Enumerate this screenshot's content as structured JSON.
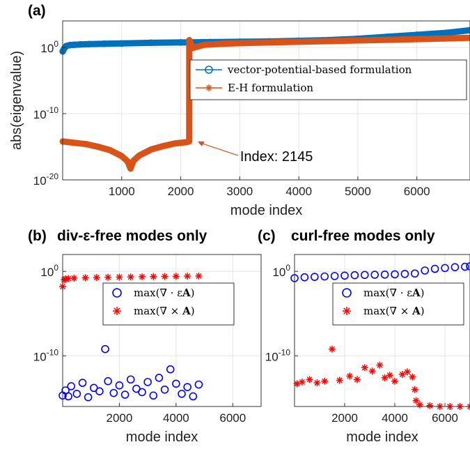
{
  "chart_data": [
    {
      "id": "a",
      "panel_label": "(a)",
      "type": "scatter",
      "xlabel": "mode index",
      "ylabel": "abs(eigenvalue)",
      "xlim": [
        0,
        6900
      ],
      "ylim_log10": [
        -20,
        4
      ],
      "yscale": "log",
      "xticks": [
        "1000",
        "2000",
        "3000",
        "4000",
        "5000",
        "6000"
      ],
      "yticks": [
        {
          "base": "10",
          "exp": "0",
          "log10": 0
        },
        {
          "base": "10",
          "exp": "-10",
          "log10": -10
        },
        {
          "base": "10",
          "exp": "-20",
          "log10": -20
        }
      ],
      "grid": true,
      "legend": "upper-right",
      "series": [
        {
          "name": "vector-potential-based formulation",
          "marker": "circle",
          "color": "#0072BD",
          "x": [
            1,
            25,
            60,
            120,
            200,
            300,
            450,
            700,
            1000,
            1500,
            2000,
            2500,
            3000,
            3500,
            4000,
            4500,
            5000,
            5500,
            6000,
            6500,
            6900
          ],
          "log10": [
            -0.6,
            -0.2,
            0.2,
            0.35,
            0.4,
            0.45,
            0.5,
            0.55,
            0.6,
            0.7,
            0.75,
            0.8,
            0.85,
            0.9,
            1.0,
            1.1,
            1.3,
            1.6,
            1.9,
            2.2,
            2.6
          ]
        },
        {
          "name": "E-H formulation",
          "marker": "asterisk",
          "color": "#D95319",
          "x": [
            1,
            200,
            400,
            600,
            800,
            1000,
            1100,
            1150,
            1200,
            1300,
            1500,
            1700,
            1900,
            2100,
            2144,
            2145,
            2146,
            2200,
            2400,
            2700,
            3000,
            3500,
            4000,
            4500,
            5000,
            5500,
            6000,
            6500,
            6900
          ],
          "log10": [
            -14.2,
            -14.4,
            -14.6,
            -15.0,
            -15.5,
            -16.4,
            -17.2,
            -18.3,
            -17.1,
            -16.3,
            -15.4,
            -14.9,
            -14.5,
            -14.3,
            -14.2,
            1.1,
            1.1,
            -0.1,
            0.4,
            0.55,
            0.65,
            0.75,
            0.85,
            0.95,
            1.05,
            1.15,
            1.25,
            1.35,
            1.45
          ]
        }
      ],
      "annotations": [
        {
          "text": "Index: 2145",
          "x": 2145,
          "log10": -14.2
        }
      ]
    },
    {
      "id": "b",
      "panel_label": "(b)",
      "title": "div-ε-free modes only",
      "type": "scatter",
      "xlabel": "mode index",
      "ylabel": "",
      "xlim": [
        0,
        7000
      ],
      "ylim_log10": [
        -16,
        2
      ],
      "yscale": "log",
      "xticks": [
        "2000",
        "4000",
        "6000"
      ],
      "yticks": [
        {
          "base": "10",
          "exp": "0",
          "log10": 0
        },
        {
          "base": "10",
          "exp": "-10",
          "log10": -10
        }
      ],
      "grid": true,
      "legend": "upper-right",
      "series": [
        {
          "name": "max(∇ · εA)",
          "marker": "circle",
          "color": "#0000FF",
          "x": [
            0,
            100,
            200,
            300,
            500,
            700,
            900,
            1100,
            1300,
            1500,
            1600,
            1800,
            2000,
            2200,
            2400,
            2600,
            2800,
            3000,
            3200,
            3400,
            3600,
            3800,
            4000,
            4200,
            4400,
            4600,
            4800
          ],
          "log10": [
            -14.7,
            -14.1,
            -14.8,
            -13.6,
            -14.5,
            -13.2,
            -14.9,
            -13.8,
            -14.2,
            -9.2,
            -13.0,
            -14.4,
            -13.5,
            -14.6,
            -12.8,
            -13.9,
            -14.3,
            -13.1,
            -14.7,
            -12.6,
            -14.0,
            -11.6,
            -13.3,
            -14.5,
            -13.7,
            -14.8,
            -13.4
          ]
        },
        {
          "name": "max(∇ × A)",
          "marker": "asterisk",
          "color": "#FF0000",
          "x": [
            0,
            50,
            100,
            200,
            400,
            800,
            1200,
            1600,
            2000,
            2400,
            2800,
            3200,
            3600,
            4000,
            4400,
            4800
          ],
          "log10": [
            -1.8,
            -1.0,
            -0.9,
            -0.85,
            -0.8,
            -0.75,
            -0.72,
            -0.7,
            -0.68,
            -0.66,
            -0.64,
            -0.62,
            -0.6,
            -0.58,
            -0.56,
            -0.55
          ]
        }
      ]
    },
    {
      "id": "c",
      "panel_label": "(c)",
      "title": "curl-free modes only",
      "type": "scatter",
      "xlabel": "mode index",
      "ylabel": "",
      "xlim": [
        0,
        7000
      ],
      "ylim_log10": [
        -16,
        2
      ],
      "yscale": "log",
      "xticks": [
        "2000",
        "4000",
        "6000"
      ],
      "yticks": [
        {
          "base": "10",
          "exp": "0",
          "log10": 0
        },
        {
          "base": "10",
          "exp": "-10",
          "log10": -10
        }
      ],
      "grid": true,
      "legend": "upper-right",
      "series": [
        {
          "name": "max(∇ · εA)",
          "marker": "circle",
          "color": "#0000FF",
          "x": [
            0,
            400,
            800,
            1200,
            1600,
            2000,
            2400,
            2800,
            3200,
            3600,
            4000,
            4400,
            4800,
            5200,
            5600,
            6000,
            6400,
            6800,
            7000
          ],
          "log10": [
            -0.8,
            -0.7,
            -0.65,
            -0.6,
            -0.55,
            -0.5,
            -0.45,
            -0.42,
            -0.4,
            -0.38,
            -0.35,
            -0.3,
            -0.25,
            0.1,
            0.3,
            0.4,
            0.5,
            0.55,
            0.6
          ]
        },
        {
          "name": "max(∇ × A)",
          "marker": "asterisk",
          "color": "#FF0000",
          "x": [
            100,
            300,
            600,
            900,
            1200,
            1500,
            1800,
            2200,
            2500,
            2800,
            3100,
            3400,
            3600,
            3800,
            4000,
            4300,
            4500,
            4700,
            4800,
            4850,
            5000,
            5400,
            5800,
            6200,
            6600,
            7000
          ],
          "log10": [
            -13.3,
            -13.1,
            -12.8,
            -13.2,
            -13.0,
            -9.2,
            -12.9,
            -12.4,
            -12.8,
            -11.4,
            -11.8,
            -11.1,
            -12.6,
            -12.3,
            -13.0,
            -12.2,
            -11.9,
            -12.5,
            -14.0,
            -15.3,
            -15.8,
            -15.9,
            -16.0,
            -16.0,
            -16.0,
            -16.0
          ]
        }
      ]
    }
  ]
}
